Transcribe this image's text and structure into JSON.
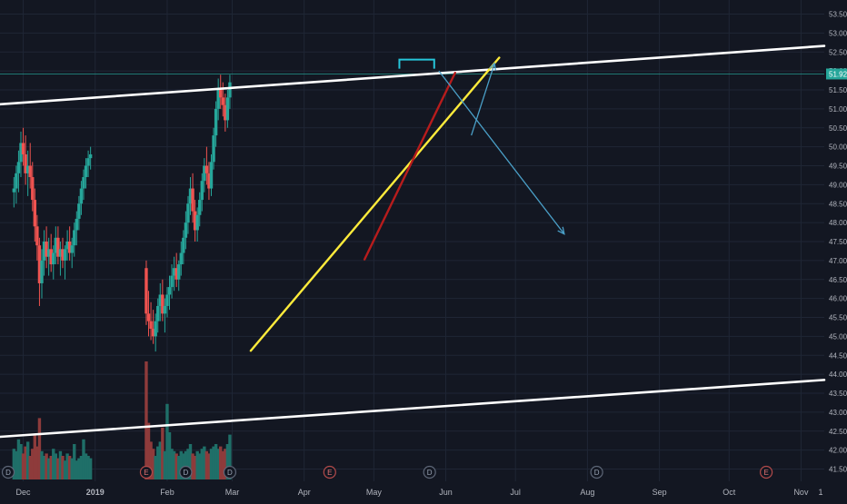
{
  "chart_data": {
    "type": "candlestick",
    "instrument": "",
    "last_price": "51.92",
    "x_tick_labels": [
      "Dec",
      "2019",
      "Feb",
      "Mar",
      "Apr",
      "May",
      "Jun",
      "Jul",
      "Aug",
      "Sep",
      "Oct",
      "Nov",
      "1"
    ],
    "y_tick_labels": [
      "41.50",
      "42.00",
      "42.50",
      "43.00",
      "43.50",
      "44.00",
      "44.50",
      "45.00",
      "45.50",
      "46.00",
      "46.50",
      "47.00",
      "47.50",
      "48.00",
      "48.50",
      "49.00",
      "49.50",
      "50.00",
      "50.50",
      "51.00",
      "51.50",
      "52.00",
      "52.50",
      "53.00",
      "53.50"
    ],
    "ylim": [
      41.25,
      53.75
    ],
    "x_range_days": [
      -10,
      345
    ],
    "grid": true,
    "ohlc_series": [
      {
        "name": "segment-1",
        "start_day": -4,
        "values": [
          [
            48.8,
            49.2,
            48.4,
            48.9
          ],
          [
            48.9,
            49.5,
            48.5,
            49.3
          ],
          [
            49.3,
            49.9,
            48.8,
            49.6
          ],
          [
            49.6,
            50.4,
            49.2,
            50.1
          ],
          [
            50.1,
            50.5,
            49.5,
            49.8
          ],
          [
            49.8,
            50.3,
            49.0,
            49.3
          ],
          [
            49.3,
            49.9,
            48.7,
            49.5
          ],
          [
            49.5,
            50.1,
            48.9,
            49.2
          ],
          [
            49.2,
            49.6,
            48.3,
            48.6
          ],
          [
            48.6,
            48.9,
            47.5,
            47.9
          ],
          [
            47.9,
            48.2,
            47.0,
            47.4
          ],
          [
            47.4,
            47.6,
            45.8,
            46.4
          ],
          [
            46.4,
            47.3,
            46.0,
            47.0
          ],
          [
            47.0,
            47.8,
            46.6,
            47.5
          ],
          [
            47.5,
            47.9,
            46.8,
            47.1
          ],
          [
            47.1,
            47.6,
            46.6,
            47.3
          ],
          [
            47.3,
            47.7,
            46.7,
            46.9
          ],
          [
            46.9,
            47.4,
            46.5,
            47.2
          ],
          [
            47.2,
            47.9,
            46.9,
            47.6
          ],
          [
            47.6,
            47.9,
            46.9,
            47.1
          ],
          [
            47.1,
            47.5,
            46.6,
            47.3
          ],
          [
            47.3,
            47.6,
            46.8,
            47.0
          ],
          [
            47.0,
            47.4,
            46.5,
            47.3
          ],
          [
            47.3,
            47.8,
            47.0,
            47.5
          ],
          [
            47.5,
            47.9,
            47.0,
            47.2
          ],
          [
            47.2,
            47.6,
            46.8,
            47.4
          ],
          [
            47.4,
            48.0,
            47.1,
            47.8
          ],
          [
            47.8,
            48.3,
            47.4,
            48.1
          ],
          [
            48.1,
            48.7,
            47.8,
            48.5
          ],
          [
            48.5,
            49.1,
            48.2,
            48.9
          ],
          [
            48.9,
            49.4,
            48.6,
            49.2
          ],
          [
            49.2,
            49.7,
            48.9,
            49.5
          ],
          [
            49.5,
            49.9,
            49.2,
            49.7
          ],
          [
            49.7,
            50.0,
            49.4,
            49.8
          ]
        ]
      },
      {
        "name": "segment-2",
        "start_day": 53,
        "values": [
          [
            46.8,
            47.0,
            45.3,
            45.6
          ],
          [
            45.6,
            46.2,
            45.0,
            45.4
          ],
          [
            45.4,
            45.9,
            44.9,
            45.2
          ],
          [
            45.2,
            45.7,
            44.8,
            45.0
          ],
          [
            45.0,
            45.6,
            44.6,
            45.4
          ],
          [
            45.4,
            46.0,
            45.1,
            45.8
          ],
          [
            45.8,
            46.4,
            45.4,
            46.1
          ],
          [
            46.1,
            46.5,
            45.4,
            45.6
          ],
          [
            45.6,
            46.0,
            45.1,
            45.8
          ],
          [
            45.8,
            46.3,
            45.5,
            46.1
          ],
          [
            46.1,
            46.6,
            45.7,
            46.3
          ],
          [
            46.3,
            46.9,
            46.0,
            46.6
          ],
          [
            46.6,
            47.1,
            46.2,
            46.8
          ],
          [
            46.8,
            47.2,
            46.3,
            46.5
          ],
          [
            46.5,
            47.0,
            46.2,
            46.9
          ],
          [
            46.9,
            47.5,
            46.6,
            47.2
          ],
          [
            47.2,
            47.8,
            46.9,
            47.6
          ],
          [
            47.6,
            48.3,
            47.3,
            48.0
          ],
          [
            48.0,
            48.7,
            47.7,
            48.5
          ],
          [
            48.5,
            49.2,
            48.2,
            48.9
          ],
          [
            48.9,
            49.3,
            48.0,
            48.3
          ],
          [
            48.3,
            48.6,
            47.5,
            47.8
          ],
          [
            47.8,
            48.4,
            47.5,
            48.2
          ],
          [
            48.2,
            48.8,
            47.9,
            48.6
          ],
          [
            48.6,
            49.3,
            48.3,
            49.1
          ],
          [
            49.1,
            49.7,
            48.8,
            49.5
          ],
          [
            49.5,
            50.0,
            49.0,
            49.3
          ],
          [
            49.3,
            49.6,
            48.6,
            48.9
          ],
          [
            48.9,
            49.8,
            48.7,
            49.6
          ],
          [
            49.6,
            50.5,
            49.4,
            50.3
          ],
          [
            50.3,
            51.2,
            50.0,
            51.0
          ],
          [
            51.0,
            51.8,
            50.7,
            51.5
          ],
          [
            51.5,
            51.9,
            51.0,
            51.3
          ],
          [
            51.3,
            51.7,
            50.8,
            51.1
          ],
          [
            51.1,
            51.4,
            50.4,
            50.7
          ],
          [
            50.7,
            51.5,
            50.5,
            51.3
          ],
          [
            51.3,
            51.9,
            51.0,
            51.7
          ]
        ]
      }
    ],
    "volume_series": [
      {
        "name": "segment-1",
        "start_day": -4,
        "values": [
          1.3,
          1.2,
          1.7,
          1.5,
          1.1,
          1.4,
          1.6,
          1.0,
          1.3,
          1.9,
          1.4,
          2.6,
          1.2,
          1.0,
          1.1,
          0.9,
          1.0,
          1.3,
          1.1,
          0.9,
          1.2,
          1.0,
          0.8,
          1.1,
          1.0,
          0.9,
          1.5,
          0.8,
          0.9,
          1.0,
          1.7,
          1.1,
          1.0,
          0.9
        ]
      },
      {
        "name": "segment-2",
        "start_day": 53,
        "values": [
          5.0,
          2.4,
          1.6,
          1.3,
          1.0,
          1.4,
          1.6,
          2.2,
          1.2,
          3.2,
          2.0,
          1.3,
          1.2,
          1.1,
          1.0,
          1.2,
          1.1,
          1.2,
          1.3,
          1.5,
          1.1,
          1.0,
          1.2,
          1.1,
          1.3,
          1.4,
          1.2,
          1.1,
          1.3,
          1.4,
          1.5,
          1.3,
          1.4,
          1.2,
          1.3,
          1.5,
          1.9
        ]
      }
    ],
    "event_markers": [
      {
        "label": "D",
        "day": -10
      },
      {
        "label": "D",
        "day": 70
      },
      {
        "label": "E",
        "day": 53
      },
      {
        "label": "D",
        "day": 89
      },
      {
        "label": "E",
        "day": 132
      },
      {
        "label": "D",
        "day": 175
      },
      {
        "label": "D",
        "day": 247
      },
      {
        "label": "E",
        "day": 320
      }
    ],
    "trendlines": [
      {
        "name": "upper-channel-line",
        "color": "#ffffff",
        "points": [
          [
            -10,
            51.12
          ],
          [
            345,
            52.66
          ]
        ]
      },
      {
        "name": "lower-channel-line",
        "color": "#ffffff",
        "points": [
          [
            -10,
            42.35
          ],
          [
            345,
            43.85
          ]
        ]
      },
      {
        "name": "yellow-support-line",
        "color": "#ffeb3b",
        "points": [
          [
            98,
            44.62
          ],
          [
            205,
            52.35
          ]
        ]
      },
      {
        "name": "red-support-line",
        "color": "#b71c1c",
        "points": [
          [
            147,
            47.03
          ],
          [
            186,
            51.95
          ]
        ]
      }
    ],
    "arrows": [
      {
        "name": "down-projection-arrow",
        "color": "#4a9fc7",
        "points": [
          [
            179,
            52.0
          ],
          [
            233,
            47.7
          ]
        ]
      },
      {
        "name": "up-projection-arrow",
        "color": "#4a9fc7",
        "points": [
          [
            193,
            50.3
          ],
          [
            203,
            52.2
          ]
        ]
      }
    ],
    "horizontal_levels": [
      {
        "name": "top-bracket",
        "color": "#26c6da",
        "value": 52.3,
        "from_day": 162,
        "to_day": 177
      },
      {
        "name": "price-level-line",
        "color": "#26a69a",
        "value": 51.92,
        "from_day": -10,
        "to_day": 345
      }
    ],
    "colors": {
      "background": "#131722",
      "grid": "#1f2635",
      "up": "#26a69a",
      "down": "#ef5350",
      "volume_up": "#1f6f68",
      "volume_down": "#8e3b3b",
      "axis_text": "#b2b5be",
      "price_label": "#26a69a"
    }
  }
}
